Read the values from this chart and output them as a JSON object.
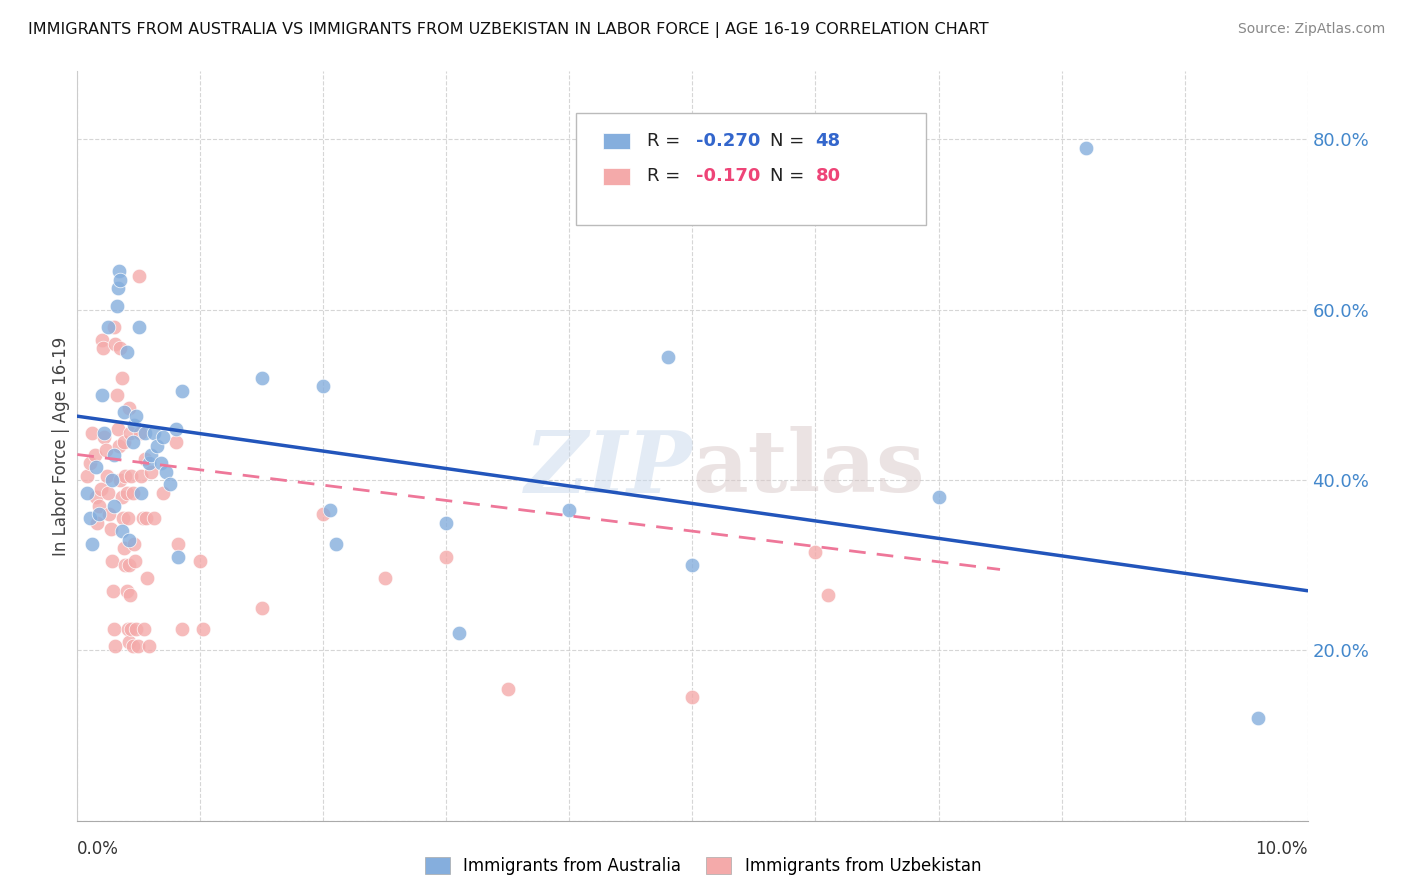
{
  "title": "IMMIGRANTS FROM AUSTRALIA VS IMMIGRANTS FROM UZBEKISTAN IN LABOR FORCE | AGE 16-19 CORRELATION CHART",
  "source": "Source: ZipAtlas.com",
  "ylabel": "In Labor Force | Age 16-19",
  "watermark": "ZIPatlas",
  "australia_color": "#85AEDD",
  "uzbekistan_color": "#F4AAAA",
  "australia_line_color": "#2255BB",
  "uzbekistan_line_color": "#EE7799",
  "legend_blue_color": "#3366CC",
  "legend_pink_color": "#EE4477",
  "australia_points": [
    [
      0.0008,
      0.385
    ],
    [
      0.001,
      0.355
    ],
    [
      0.0012,
      0.325
    ],
    [
      0.0015,
      0.415
    ],
    [
      0.0018,
      0.36
    ],
    [
      0.002,
      0.5
    ],
    [
      0.0022,
      0.455
    ],
    [
      0.0025,
      0.58
    ],
    [
      0.0028,
      0.4
    ],
    [
      0.003,
      0.37
    ],
    [
      0.003,
      0.43
    ],
    [
      0.0032,
      0.605
    ],
    [
      0.0033,
      0.625
    ],
    [
      0.0034,
      0.645
    ],
    [
      0.0035,
      0.635
    ],
    [
      0.0036,
      0.34
    ],
    [
      0.0038,
      0.48
    ],
    [
      0.004,
      0.55
    ],
    [
      0.0042,
      0.33
    ],
    [
      0.0045,
      0.445
    ],
    [
      0.0046,
      0.465
    ],
    [
      0.0048,
      0.475
    ],
    [
      0.005,
      0.58
    ],
    [
      0.0052,
      0.385
    ],
    [
      0.0055,
      0.455
    ],
    [
      0.0058,
      0.42
    ],
    [
      0.006,
      0.43
    ],
    [
      0.0062,
      0.455
    ],
    [
      0.0065,
      0.44
    ],
    [
      0.0068,
      0.42
    ],
    [
      0.007,
      0.45
    ],
    [
      0.0072,
      0.41
    ],
    [
      0.0075,
      0.395
    ],
    [
      0.008,
      0.46
    ],
    [
      0.0082,
      0.31
    ],
    [
      0.0085,
      0.505
    ],
    [
      0.015,
      0.52
    ],
    [
      0.02,
      0.51
    ],
    [
      0.0205,
      0.365
    ],
    [
      0.021,
      0.325
    ],
    [
      0.03,
      0.35
    ],
    [
      0.031,
      0.22
    ],
    [
      0.04,
      0.365
    ],
    [
      0.048,
      0.545
    ],
    [
      0.05,
      0.3
    ],
    [
      0.07,
      0.38
    ],
    [
      0.082,
      0.79
    ],
    [
      0.096,
      0.12
    ]
  ],
  "uzbekistan_points": [
    [
      0.0008,
      0.405
    ],
    [
      0.001,
      0.42
    ],
    [
      0.0012,
      0.455
    ],
    [
      0.0014,
      0.43
    ],
    [
      0.0015,
      0.38
    ],
    [
      0.0016,
      0.35
    ],
    [
      0.0018,
      0.37
    ],
    [
      0.0019,
      0.39
    ],
    [
      0.002,
      0.565
    ],
    [
      0.0021,
      0.555
    ],
    [
      0.0022,
      0.45
    ],
    [
      0.0023,
      0.435
    ],
    [
      0.0024,
      0.405
    ],
    [
      0.0025,
      0.385
    ],
    [
      0.0026,
      0.36
    ],
    [
      0.0027,
      0.342
    ],
    [
      0.0028,
      0.305
    ],
    [
      0.0029,
      0.27
    ],
    [
      0.003,
      0.225
    ],
    [
      0.0031,
      0.205
    ],
    [
      0.003,
      0.58
    ],
    [
      0.0031,
      0.56
    ],
    [
      0.0032,
      0.5
    ],
    [
      0.0033,
      0.46
    ],
    [
      0.0034,
      0.44
    ],
    [
      0.0035,
      0.4
    ],
    [
      0.0036,
      0.38
    ],
    [
      0.0037,
      0.355
    ],
    [
      0.0038,
      0.32
    ],
    [
      0.0039,
      0.3
    ],
    [
      0.004,
      0.27
    ],
    [
      0.0041,
      0.225
    ],
    [
      0.0042,
      0.21
    ],
    [
      0.0035,
      0.555
    ],
    [
      0.0036,
      0.52
    ],
    [
      0.0038,
      0.445
    ],
    [
      0.0039,
      0.405
    ],
    [
      0.004,
      0.385
    ],
    [
      0.0041,
      0.355
    ],
    [
      0.0042,
      0.3
    ],
    [
      0.0043,
      0.265
    ],
    [
      0.0044,
      0.225
    ],
    [
      0.0045,
      0.205
    ],
    [
      0.0042,
      0.485
    ],
    [
      0.0043,
      0.455
    ],
    [
      0.0044,
      0.405
    ],
    [
      0.0045,
      0.385
    ],
    [
      0.0046,
      0.325
    ],
    [
      0.0047,
      0.305
    ],
    [
      0.0048,
      0.225
    ],
    [
      0.0049,
      0.205
    ],
    [
      0.005,
      0.64
    ],
    [
      0.0051,
      0.455
    ],
    [
      0.0052,
      0.405
    ],
    [
      0.0053,
      0.355
    ],
    [
      0.0054,
      0.225
    ],
    [
      0.0055,
      0.425
    ],
    [
      0.0056,
      0.355
    ],
    [
      0.0057,
      0.285
    ],
    [
      0.0058,
      0.205
    ],
    [
      0.006,
      0.41
    ],
    [
      0.0062,
      0.355
    ],
    [
      0.007,
      0.385
    ],
    [
      0.008,
      0.445
    ],
    [
      0.0082,
      0.325
    ],
    [
      0.0085,
      0.225
    ],
    [
      0.01,
      0.305
    ],
    [
      0.0102,
      0.225
    ],
    [
      0.015,
      0.25
    ],
    [
      0.02,
      0.36
    ],
    [
      0.025,
      0.285
    ],
    [
      0.03,
      0.31
    ],
    [
      0.035,
      0.155
    ],
    [
      0.05,
      0.145
    ],
    [
      0.06,
      0.315
    ],
    [
      0.061,
      0.265
    ]
  ],
  "aus_trend_x": [
    0.0,
    0.1
  ],
  "aus_trend_y": [
    0.475,
    0.27
  ],
  "uzb_trend_x": [
    0.0,
    0.075
  ],
  "uzb_trend_y": [
    0.43,
    0.295
  ],
  "ylim": [
    0.0,
    0.88
  ],
  "xlim": [
    0.0,
    0.1
  ],
  "ytick_positions": [
    0.2,
    0.4,
    0.6,
    0.8
  ],
  "ytick_labels": [
    "20.0%",
    "40.0%",
    "60.0%",
    "80.0%"
  ]
}
